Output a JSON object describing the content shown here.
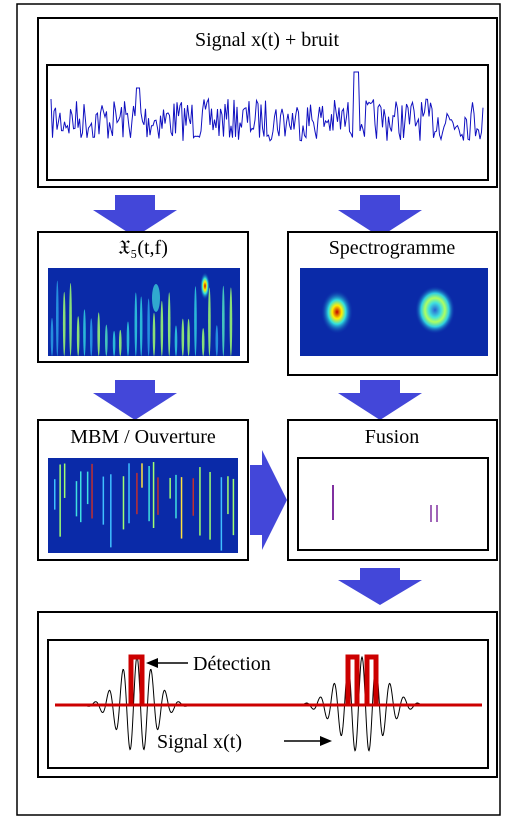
{
  "panels": {
    "signal": {
      "title": "Signal x(t) + bruit"
    },
    "wigner": {
      "title": "𝔛₅(t,f)"
    },
    "spectrogram": {
      "title": "Spectrogramme"
    },
    "mbm": {
      "title": "MBM / Ouverture"
    },
    "fusion": {
      "title": "Fusion"
    }
  },
  "annotations": {
    "detection": "Détection",
    "signal": "Signal x(t)"
  }
}
